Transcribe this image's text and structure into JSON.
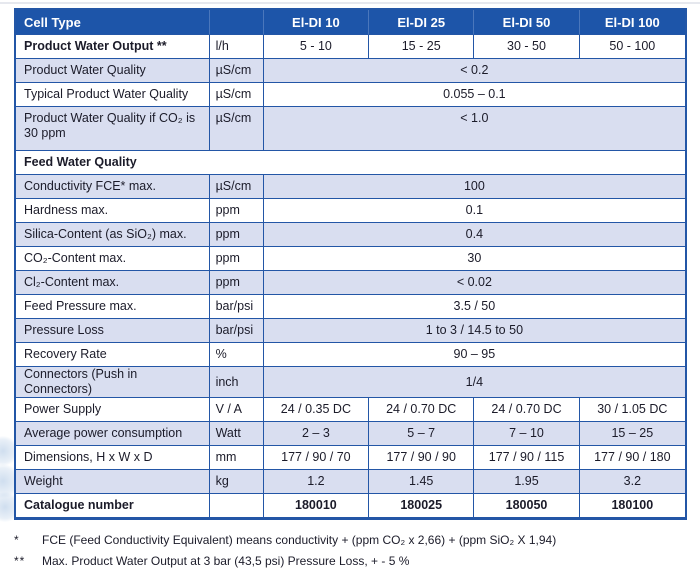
{
  "colors": {
    "header_bg": "#1d55a9",
    "row_shade": "#d9def0",
    "border": "#2356a6",
    "header_divider": "#4a77bc",
    "text": "#1b1b29",
    "header_text": "#ffffff"
  },
  "table": {
    "header": {
      "label": "Cell Type",
      "unit": "",
      "columns": [
        "El-DI 10",
        "El-DI 25",
        "El-DI 50",
        "El-DI 100"
      ]
    },
    "rows": [
      {
        "label": "Product Water Output **",
        "bold": true,
        "unit": "l/h",
        "values": [
          "5 - 10",
          "15 - 25",
          "30 - 50",
          "50 - 100"
        ],
        "shade": false
      },
      {
        "label": "Product Water Quality",
        "unit": "µS/cm",
        "span": "< 0.2",
        "shade": true
      },
      {
        "label": "Typical Product Water Quality",
        "unit": "µS/cm",
        "span": "0.055 – 0.1",
        "shade": false
      },
      {
        "label": "Product Water Quality if CO₂ is\n30 ppm",
        "unit": "µS/cm",
        "span": "< 1.0",
        "shade": true,
        "tall": true
      },
      {
        "label": "Feed Water Quality",
        "section": true,
        "shade": false
      },
      {
        "label": "Conductivity FCE* max.",
        "unit": "µS/cm",
        "span": "100",
        "shade": true
      },
      {
        "label": "Hardness max.",
        "unit": "ppm",
        "span": "0.1",
        "shade": false
      },
      {
        "label": "Silica-Content (as SiO₂) max.",
        "unit": "ppm",
        "span": "0.4",
        "shade": true
      },
      {
        "label": "CO₂-Content max.",
        "unit": "ppm",
        "span": "30",
        "shade": false
      },
      {
        "label": "Cl₂-Content max.",
        "unit": "ppm",
        "span": "< 0.02",
        "shade": true
      },
      {
        "label": "Feed Pressure max.",
        "unit": "bar/psi",
        "span": "3.5 / 50",
        "shade": false
      },
      {
        "label": "Pressure Loss",
        "unit": "bar/psi",
        "span": "1 to 3  / 14.5 to 50",
        "shade": true
      },
      {
        "label": "Recovery Rate",
        "unit": "%",
        "span": "90 – 95",
        "shade": false
      },
      {
        "label": "Connectors (Push in Connectors)",
        "unit": "inch",
        "span": "1/4",
        "shade": true
      },
      {
        "label": "Power Supply",
        "unit": "V / A",
        "values": [
          "24 / 0.35 DC",
          "24 / 0.70 DC",
          "24 / 0.70 DC",
          "30 / 1.05 DC"
        ],
        "shade": false
      },
      {
        "label": "Average power consumption",
        "unit": "Watt",
        "values": [
          "2 – 3",
          "5 – 7",
          "7 – 10",
          "15 – 25"
        ],
        "shade": true
      },
      {
        "label": "Dimensions, H x W x D",
        "unit": "mm",
        "values": [
          "177 / 90 / 70",
          "177 / 90 / 90",
          "177 / 90 / 115",
          "177 / 90 / 180"
        ],
        "shade": false
      },
      {
        "label": "Weight",
        "unit": "kg",
        "values": [
          "1.2",
          "1.45",
          "1.95",
          "3.2"
        ],
        "shade": true
      },
      {
        "label": "Catalogue number",
        "bold": true,
        "unit": "",
        "values": [
          "180010",
          "180025",
          "180050",
          "180100"
        ],
        "values_bold": true,
        "shade": false
      }
    ]
  },
  "footnotes": [
    {
      "symbol": "*",
      "text": "FCE (Feed Conductivity Equivalent) means conductivity + (ppm CO₂ x 2,66) + (ppm SiO₂ X 1,94)"
    },
    {
      "symbol": "**",
      "text": "Max. Product Water Output at 3 bar (43,5 psi) Pressure Loss, + - 5 %"
    }
  ]
}
